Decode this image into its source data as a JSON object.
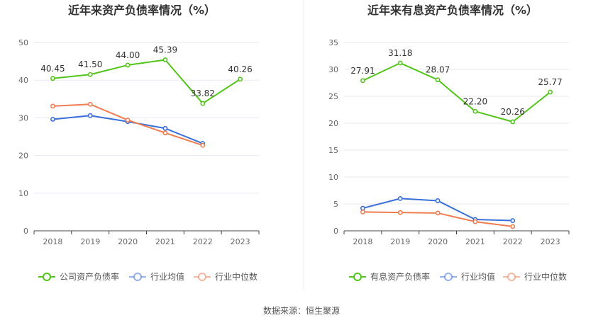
{
  "source": "数据来源：恒生聚源",
  "chart_data": [
    {
      "type": "line",
      "title": "近年来资产负债率情况（%）",
      "categories": [
        "2018",
        "2019",
        "2020",
        "2021",
        "2022",
        "2023"
      ],
      "ylim": [
        0,
        50
      ],
      "yticks": [
        0,
        10,
        20,
        30,
        40,
        50
      ],
      "grid": true,
      "legend_position": "bottom",
      "series": [
        {
          "name": "公司资产负债率",
          "color": "#52c41a",
          "values": [
            40.45,
            41.5,
            44.0,
            45.39,
            33.82,
            40.26
          ],
          "labels": [
            "40.45",
            "41.50",
            "44.00",
            "45.39",
            "33.82",
            "40.26"
          ]
        },
        {
          "name": "行业均值",
          "color": "#3a6fd8",
          "values": [
            29.6,
            30.6,
            29.0,
            27.2,
            23.2,
            null
          ]
        },
        {
          "name": "行业中位数",
          "color": "#f07c50",
          "values": [
            33.1,
            33.6,
            29.4,
            26.0,
            22.7,
            null
          ]
        }
      ]
    },
    {
      "type": "line",
      "title": "近年来有息资产负债率情况（%）",
      "categories": [
        "2018",
        "2019",
        "2020",
        "2021",
        "2022",
        "2023"
      ],
      "ylim": [
        0,
        35
      ],
      "yticks": [
        0,
        5,
        10,
        15,
        20,
        25,
        30,
        35
      ],
      "grid": true,
      "legend_position": "bottom",
      "series": [
        {
          "name": "有息资产负债率",
          "color": "#52c41a",
          "values": [
            27.91,
            31.18,
            28.07,
            22.2,
            20.26,
            25.77
          ],
          "labels": [
            "27.91",
            "31.18",
            "28.07",
            "22.20",
            "20.26",
            "25.77"
          ]
        },
        {
          "name": "行业均值",
          "color": "#3a6fd8",
          "values": [
            4.2,
            6.0,
            5.6,
            2.1,
            1.9,
            null
          ]
        },
        {
          "name": "行业中位数",
          "color": "#f07c50",
          "values": [
            3.5,
            3.4,
            3.3,
            1.7,
            0.8,
            null
          ]
        }
      ]
    }
  ]
}
